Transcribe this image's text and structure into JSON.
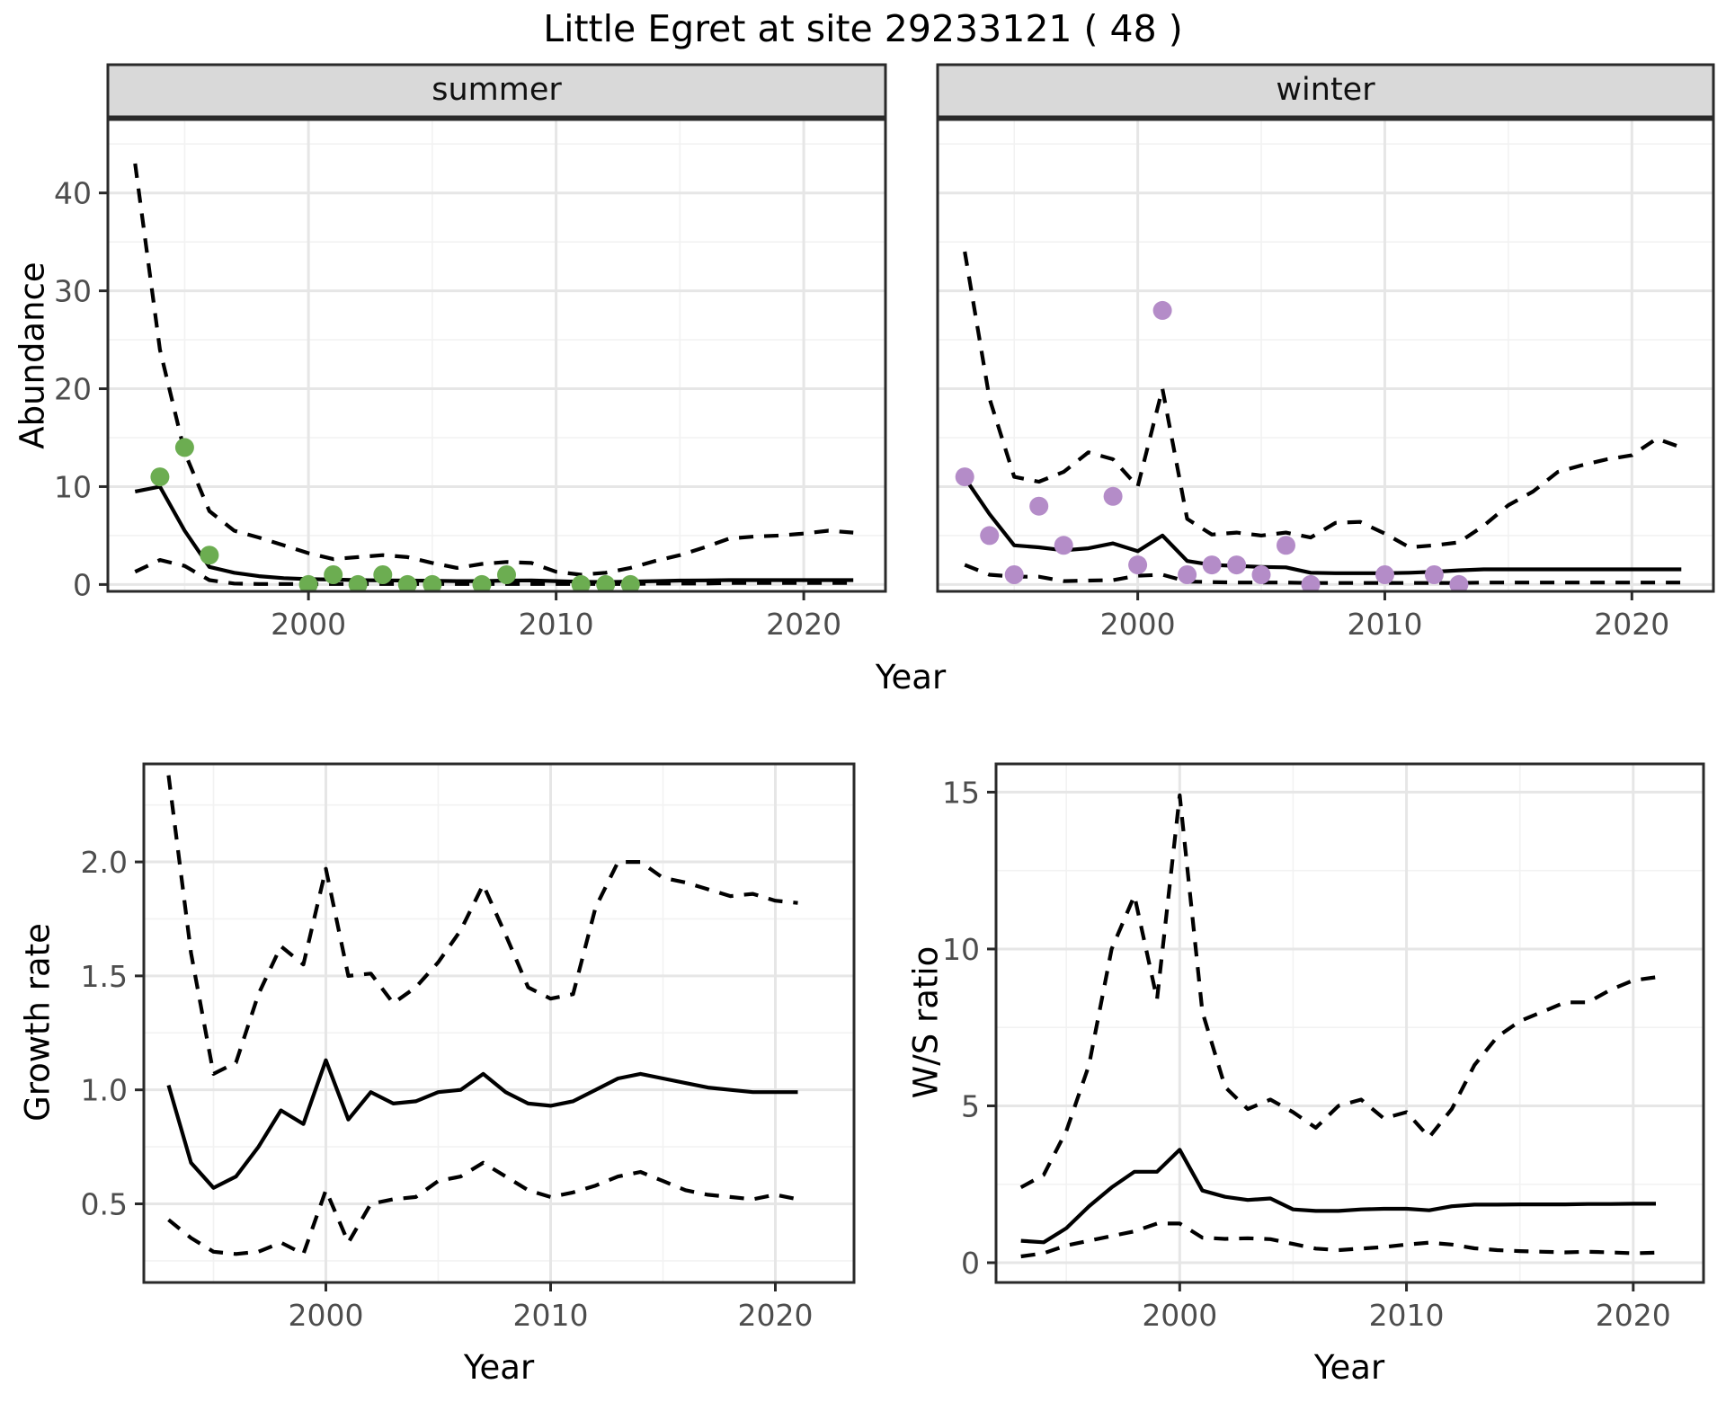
{
  "title": "Little Egret at site 29233121 ( 48 )",
  "colors": {
    "background": "#ffffff",
    "strip_bg": "#d9d9d9",
    "panel_border": "#2a2a2a",
    "grid_major": "#e6e6e6",
    "grid_minor": "#f2f2f2",
    "tick_label": "#4d4d4d",
    "line": "#000000",
    "summer_points": "#6cad51",
    "winter_points": "#b48cc8"
  },
  "chart_data": [
    {
      "id": "abundance_summer",
      "type": "line",
      "strip_label": "summer",
      "x_title": "Year",
      "y_title": "Abundance",
      "xlim": [
        1991.9,
        2023.3
      ],
      "ylim": [
        -0.7,
        47.5
      ],
      "x_ticks": {
        "major": [
          2000,
          2010,
          2020
        ],
        "labels": [
          "2000",
          "2010",
          "2020"
        ],
        "minor": [
          1995,
          2005,
          2015
        ]
      },
      "y_ticks": {
        "major": [
          0,
          10,
          20,
          30,
          40
        ],
        "labels": [
          "0",
          "10",
          "20",
          "30",
          "40"
        ],
        "minor": [
          5,
          15,
          25,
          35,
          45
        ]
      },
      "years": [
        1993,
        1994,
        1995,
        1996,
        1997,
        1998,
        1999,
        2000,
        2001,
        2002,
        2003,
        2004,
        2005,
        2006,
        2007,
        2008,
        2009,
        2010,
        2011,
        2012,
        2013,
        2014,
        2015,
        2016,
        2017,
        2018,
        2019,
        2020,
        2021,
        2022
      ],
      "series": [
        {
          "name": "lower 95% CI",
          "style": "dashed",
          "values": [
            1.3,
            2.5,
            1.9,
            0.45,
            0.1,
            0.05,
            0.05,
            0.05,
            0.05,
            0.05,
            0.05,
            0.05,
            0.05,
            0.05,
            0.05,
            0.05,
            0.05,
            0.05,
            0.05,
            0.05,
            0.05,
            0.1,
            0.1,
            0.1,
            0.15,
            0.15,
            0.15,
            0.15,
            0.15,
            0.15
          ]
        },
        {
          "name": "upper 95% CI",
          "style": "dashed",
          "values": [
            43,
            24,
            13.5,
            7.5,
            5.5,
            4.8,
            4.0,
            3.2,
            2.6,
            2.8,
            3.0,
            2.8,
            2.2,
            1.7,
            2.1,
            2.3,
            2.2,
            1.3,
            1.0,
            1.2,
            1.7,
            2.4,
            3.0,
            3.8,
            4.7,
            4.9,
            5.0,
            5.2,
            5.5,
            5.3
          ]
        },
        {
          "name": "model fit",
          "style": "solid",
          "values": [
            9.5,
            10,
            5.5,
            1.8,
            1.2,
            0.85,
            0.65,
            0.55,
            0.5,
            0.45,
            0.42,
            0.4,
            0.38,
            0.35,
            0.35,
            0.4,
            0.42,
            0.35,
            0.28,
            0.25,
            0.3,
            0.35,
            0.4,
            0.42,
            0.45,
            0.45,
            0.45,
            0.45,
            0.45,
            0.45
          ]
        }
      ],
      "points": {
        "name": "observed summer counts",
        "color": "#6cad51",
        "data": [
          [
            1994,
            11
          ],
          [
            1995,
            14
          ],
          [
            1996,
            3
          ],
          [
            2000,
            0
          ],
          [
            2001,
            1
          ],
          [
            2002,
            0
          ],
          [
            2003,
            1
          ],
          [
            2004,
            0
          ],
          [
            2005,
            0
          ],
          [
            2007,
            0
          ],
          [
            2008,
            1
          ],
          [
            2011,
            0
          ],
          [
            2012,
            0
          ],
          [
            2013,
            0
          ]
        ]
      }
    },
    {
      "id": "abundance_winter",
      "type": "line",
      "strip_label": "winter",
      "x_title": "Year",
      "y_title": "Abundance",
      "xlim": [
        1991.9,
        2023.3
      ],
      "ylim": [
        -0.7,
        47.5
      ],
      "x_ticks": {
        "major": [
          2000,
          2010,
          2020
        ],
        "labels": [
          "2000",
          "2010",
          "2020"
        ],
        "minor": [
          1995,
          2005,
          2015
        ]
      },
      "y_ticks": {
        "major": [
          0,
          10,
          20,
          30,
          40
        ],
        "labels": [
          "0",
          "10",
          "20",
          "30",
          "40"
        ],
        "minor": [
          5,
          15,
          25,
          35,
          45
        ]
      },
      "years": [
        1993,
        1994,
        1995,
        1996,
        1997,
        1998,
        1999,
        2000,
        2001,
        2002,
        2003,
        2004,
        2005,
        2006,
        2007,
        2008,
        2009,
        2010,
        2011,
        2012,
        2013,
        2014,
        2015,
        2016,
        2017,
        2018,
        2019,
        2020,
        2021,
        2022
      ],
      "series": [
        {
          "name": "lower 95% CI",
          "style": "dashed",
          "values": [
            2.0,
            1.0,
            0.8,
            0.8,
            0.35,
            0.4,
            0.45,
            0.9,
            1.0,
            0.3,
            0.25,
            0.2,
            0.2,
            0.2,
            0.15,
            0.15,
            0.15,
            0.15,
            0.15,
            0.15,
            0.15,
            0.2,
            0.2,
            0.2,
            0.2,
            0.2,
            0.2,
            0.2,
            0.2,
            0.2
          ]
        },
        {
          "name": "upper 95% CI",
          "style": "dashed",
          "values": [
            34,
            19,
            11,
            10.5,
            11.5,
            13.5,
            12.8,
            10,
            20,
            6.7,
            5.1,
            5.3,
            5.0,
            5.3,
            4.8,
            6.3,
            6.4,
            5.2,
            3.8,
            4.0,
            4.3,
            6.0,
            8.1,
            9.5,
            11.5,
            12.2,
            12.8,
            13.2,
            14.9,
            14.0
          ]
        },
        {
          "name": "model fit",
          "style": "solid",
          "values": [
            10.9,
            7.2,
            4.0,
            3.8,
            3.5,
            3.7,
            4.2,
            3.4,
            5.0,
            2.4,
            2.0,
            1.9,
            1.8,
            1.75,
            1.2,
            1.15,
            1.15,
            1.15,
            1.2,
            1.3,
            1.45,
            1.55,
            1.55,
            1.55,
            1.55,
            1.55,
            1.55,
            1.55,
            1.55,
            1.55
          ]
        }
      ],
      "points": {
        "name": "observed winter counts",
        "color": "#b48cc8",
        "data": [
          [
            1993,
            11
          ],
          [
            1994,
            5
          ],
          [
            1995,
            1
          ],
          [
            1996,
            8
          ],
          [
            1997,
            4
          ],
          [
            1999,
            9
          ],
          [
            2000,
            2
          ],
          [
            2001,
            28
          ],
          [
            2002,
            1
          ],
          [
            2003,
            2
          ],
          [
            2004,
            2
          ],
          [
            2005,
            1
          ],
          [
            2006,
            4
          ],
          [
            2007,
            0
          ],
          [
            2010,
            1
          ],
          [
            2012,
            1
          ],
          [
            2013,
            0
          ]
        ]
      }
    },
    {
      "id": "growth_rate",
      "type": "line",
      "strip_label": "",
      "x_title": "Year",
      "y_title": "Growth rate",
      "xlim": [
        1991.9,
        2023.5
      ],
      "ylim": [
        0.155,
        2.43
      ],
      "x_ticks": {
        "major": [
          2000,
          2010,
          2020
        ],
        "labels": [
          "2000",
          "2010",
          "2020"
        ],
        "minor": [
          1995,
          2005,
          2015
        ]
      },
      "y_ticks": {
        "major": [
          0.5,
          1.0,
          1.5,
          2.0
        ],
        "labels": [
          "0.5",
          "1.0",
          "1.5",
          "2.0"
        ],
        "minor": [
          0.25,
          0.75,
          1.25,
          1.75,
          2.25
        ]
      },
      "years": [
        1993,
        1994,
        1995,
        1996,
        1997,
        1998,
        1999,
        2000,
        2001,
        2002,
        2003,
        2004,
        2005,
        2006,
        2007,
        2008,
        2009,
        2010,
        2011,
        2012,
        2013,
        2014,
        2015,
        2016,
        2017,
        2018,
        2019,
        2020,
        2021
      ],
      "series": [
        {
          "name": "lower 95% CI",
          "style": "dashed",
          "values": [
            0.43,
            0.35,
            0.29,
            0.28,
            0.29,
            0.33,
            0.28,
            0.56,
            0.33,
            0.5,
            0.52,
            0.53,
            0.6,
            0.62,
            0.68,
            0.62,
            0.56,
            0.53,
            0.55,
            0.58,
            0.62,
            0.64,
            0.6,
            0.56,
            0.54,
            0.53,
            0.52,
            0.54,
            0.52
          ]
        },
        {
          "name": "upper 95% CI",
          "style": "dashed",
          "values": [
            2.38,
            1.6,
            1.07,
            1.12,
            1.42,
            1.63,
            1.55,
            1.97,
            1.5,
            1.51,
            1.38,
            1.45,
            1.56,
            1.7,
            1.9,
            1.68,
            1.45,
            1.4,
            1.42,
            1.8,
            2.0,
            2.0,
            1.93,
            1.91,
            1.88,
            1.85,
            1.86,
            1.83,
            1.82
          ]
        },
        {
          "name": "model fit",
          "style": "solid",
          "values": [
            1.02,
            0.68,
            0.57,
            0.62,
            0.75,
            0.91,
            0.85,
            1.13,
            0.87,
            0.99,
            0.94,
            0.95,
            0.99,
            1.0,
            1.07,
            0.99,
            0.94,
            0.93,
            0.95,
            1.0,
            1.05,
            1.07,
            1.05,
            1.03,
            1.01,
            1.0,
            0.99,
            0.99,
            0.99
          ]
        }
      ]
    },
    {
      "id": "ws_ratio",
      "type": "line",
      "strip_label": "",
      "x_title": "Year",
      "y_title": "W/S ratio",
      "xlim": [
        1991.9,
        2023.1
      ],
      "ylim": [
        -0.63,
        15.9
      ],
      "x_ticks": {
        "major": [
          2000,
          2010,
          2020
        ],
        "labels": [
          "2000",
          "2010",
          "2020"
        ],
        "minor": [
          1995,
          2005,
          2015
        ]
      },
      "y_ticks": {
        "major": [
          0,
          5,
          10,
          15
        ],
        "labels": [
          "0",
          "5",
          "10",
          "15"
        ],
        "minor": [
          2.5,
          7.5,
          12.5
        ]
      },
      "years": [
        1993,
        1994,
        1995,
        1996,
        1997,
        1998,
        1999,
        2000,
        2001,
        2002,
        2003,
        2004,
        2005,
        2006,
        2007,
        2008,
        2009,
        2010,
        2011,
        2012,
        2013,
        2014,
        2015,
        2016,
        2017,
        2018,
        2019,
        2020,
        2021
      ],
      "series": [
        {
          "name": "lower 95% CI",
          "style": "dashed",
          "values": [
            0.2,
            0.3,
            0.55,
            0.7,
            0.85,
            1.0,
            1.25,
            1.25,
            0.8,
            0.76,
            0.78,
            0.75,
            0.6,
            0.45,
            0.4,
            0.45,
            0.5,
            0.58,
            0.64,
            0.58,
            0.46,
            0.4,
            0.37,
            0.35,
            0.33,
            0.35,
            0.33,
            0.3,
            0.32
          ]
        },
        {
          "name": "upper 95% CI",
          "style": "dashed",
          "values": [
            2.4,
            2.8,
            4.2,
            6.3,
            10.0,
            11.7,
            8.4,
            14.9,
            8.0,
            5.6,
            4.9,
            5.2,
            4.8,
            4.3,
            5.0,
            5.2,
            4.6,
            4.8,
            4.0,
            4.9,
            6.3,
            7.2,
            7.7,
            8.0,
            8.3,
            8.3,
            8.7,
            9.0,
            9.1
          ]
        },
        {
          "name": "model fit",
          "style": "solid",
          "values": [
            0.7,
            0.65,
            1.1,
            1.8,
            2.4,
            2.9,
            2.9,
            3.6,
            2.3,
            2.1,
            2.0,
            2.05,
            1.7,
            1.65,
            1.65,
            1.7,
            1.72,
            1.72,
            1.67,
            1.8,
            1.85,
            1.85,
            1.86,
            1.86,
            1.86,
            1.87,
            1.87,
            1.88,
            1.88
          ]
        }
      ]
    }
  ]
}
